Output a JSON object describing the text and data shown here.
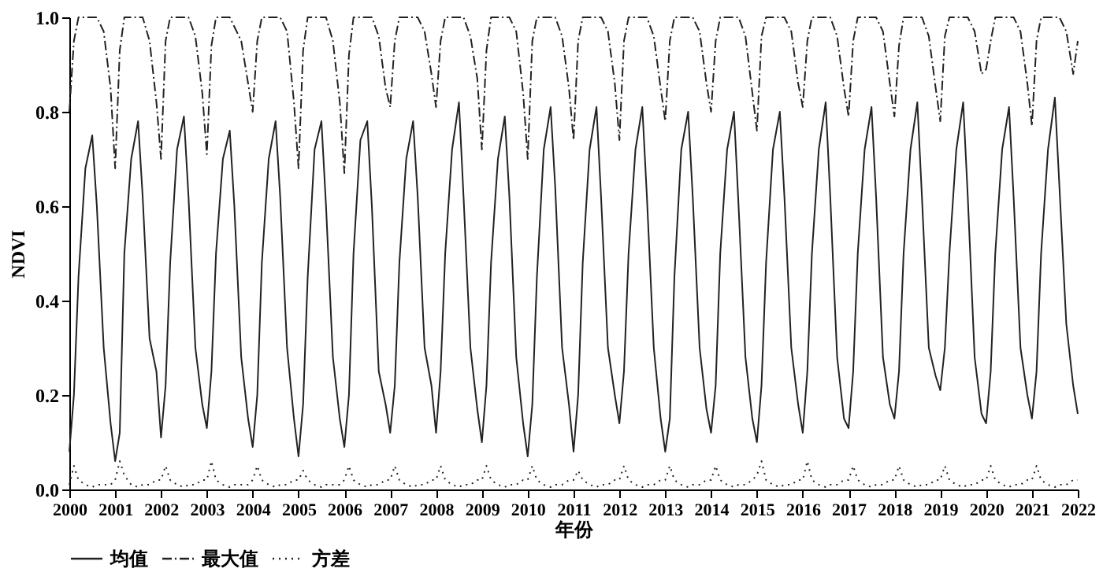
{
  "chart_data": {
    "type": "line",
    "xlabel": "年份",
    "ylabel": "NDVI",
    "xlim": [
      2000,
      2022
    ],
    "xticks": [
      2000,
      2001,
      2002,
      2003,
      2004,
      2005,
      2006,
      2007,
      2008,
      2009,
      2010,
      2011,
      2012,
      2013,
      2014,
      2015,
      2016,
      2017,
      2018,
      2019,
      2020,
      2021,
      2022
    ],
    "ylim": [
      0,
      1
    ],
    "yticks": [
      {
        "value": 0,
        "label": "0.0"
      },
      0.2,
      0.4,
      0.6,
      0.8,
      {
        "value": 1,
        "label": "1.0"
      }
    ],
    "grid": false,
    "legend": "bottom",
    "marker": "none",
    "x": [
      2000,
      2000.1,
      2000.2,
      2000.35,
      2000.5,
      2000.6,
      2000.75,
      2000.9,
      2001,
      2001.1,
      2001.2,
      2001.35,
      2001.5,
      2001.6,
      2001.75,
      2001.9,
      2002,
      2002.1,
      2002.2,
      2002.35,
      2002.5,
      2002.6,
      2002.75,
      2002.9,
      2003,
      2003.1,
      2003.2,
      2003.35,
      2003.5,
      2003.6,
      2003.75,
      2003.9,
      2004,
      2004.1,
      2004.2,
      2004.35,
      2004.5,
      2004.6,
      2004.75,
      2004.9,
      2005,
      2005.1,
      2005.2,
      2005.35,
      2005.5,
      2005.6,
      2005.75,
      2005.9,
      2006,
      2006.1,
      2006.2,
      2006.35,
      2006.5,
      2006.6,
      2006.75,
      2006.9,
      2007,
      2007.1,
      2007.2,
      2007.35,
      2007.5,
      2007.6,
      2007.75,
      2007.9,
      2008,
      2008.1,
      2008.2,
      2008.35,
      2008.5,
      2008.6,
      2008.75,
      2008.9,
      2009,
      2009.1,
      2009.2,
      2009.35,
      2009.5,
      2009.6,
      2009.75,
      2009.9,
      2010,
      2010.1,
      2010.2,
      2010.35,
      2010.5,
      2010.6,
      2010.75,
      2010.9,
      2011,
      2011.1,
      2011.2,
      2011.35,
      2011.5,
      2011.6,
      2011.75,
      2011.9,
      2012,
      2012.1,
      2012.2,
      2012.35,
      2012.5,
      2012.6,
      2012.75,
      2012.9,
      2013,
      2013.1,
      2013.2,
      2013.35,
      2013.5,
      2013.6,
      2013.75,
      2013.9,
      2014,
      2014.1,
      2014.2,
      2014.35,
      2014.5,
      2014.6,
      2014.75,
      2014.9,
      2015,
      2015.1,
      2015.2,
      2015.35,
      2015.5,
      2015.6,
      2015.75,
      2015.9,
      2016,
      2016.1,
      2016.2,
      2016.35,
      2016.5,
      2016.6,
      2016.75,
      2016.9,
      2017,
      2017.1,
      2017.2,
      2017.35,
      2017.5,
      2017.6,
      2017.75,
      2017.9,
      2018,
      2018.1,
      2018.2,
      2018.35,
      2018.5,
      2018.6,
      2018.75,
      2018.9,
      2019,
      2019.1,
      2019.2,
      2019.35,
      2019.5,
      2019.6,
      2019.75,
      2019.9,
      2020,
      2020.1,
      2020.2,
      2020.35,
      2020.5,
      2020.6,
      2020.75,
      2020.9,
      2021,
      2021.1,
      2021.2,
      2021.35,
      2021.5,
      2021.6,
      2021.75,
      2021.9,
      2022
    ],
    "series": [
      {
        "name": "均值",
        "color": "#222222",
        "line_style": "solid",
        "values": [
          0.08,
          0.2,
          0.45,
          0.68,
          0.75,
          0.6,
          0.3,
          0.14,
          0.06,
          0.12,
          0.5,
          0.7,
          0.78,
          0.62,
          0.32,
          0.25,
          0.11,
          0.22,
          0.48,
          0.72,
          0.79,
          0.62,
          0.3,
          0.18,
          0.13,
          0.25,
          0.5,
          0.7,
          0.76,
          0.6,
          0.28,
          0.15,
          0.09,
          0.2,
          0.48,
          0.7,
          0.78,
          0.62,
          0.3,
          0.15,
          0.07,
          0.18,
          0.45,
          0.72,
          0.78,
          0.6,
          0.28,
          0.15,
          0.09,
          0.2,
          0.5,
          0.74,
          0.78,
          0.6,
          0.25,
          0.18,
          0.12,
          0.22,
          0.48,
          0.7,
          0.78,
          0.62,
          0.3,
          0.22,
          0.12,
          0.25,
          0.5,
          0.72,
          0.82,
          0.62,
          0.3,
          0.17,
          0.1,
          0.22,
          0.48,
          0.7,
          0.79,
          0.62,
          0.28,
          0.14,
          0.07,
          0.18,
          0.45,
          0.72,
          0.81,
          0.64,
          0.3,
          0.18,
          0.08,
          0.2,
          0.48,
          0.72,
          0.81,
          0.62,
          0.3,
          0.2,
          0.14,
          0.25,
          0.5,
          0.72,
          0.81,
          0.62,
          0.3,
          0.15,
          0.08,
          0.15,
          0.45,
          0.72,
          0.8,
          0.62,
          0.3,
          0.17,
          0.12,
          0.22,
          0.5,
          0.72,
          0.8,
          0.6,
          0.28,
          0.15,
          0.1,
          0.22,
          0.48,
          0.72,
          0.8,
          0.62,
          0.3,
          0.18,
          0.12,
          0.25,
          0.5,
          0.72,
          0.82,
          0.62,
          0.28,
          0.15,
          0.13,
          0.25,
          0.5,
          0.72,
          0.81,
          0.62,
          0.28,
          0.18,
          0.15,
          0.25,
          0.5,
          0.72,
          0.82,
          0.62,
          0.3,
          0.24,
          0.21,
          0.3,
          0.5,
          0.72,
          0.82,
          0.62,
          0.28,
          0.16,
          0.14,
          0.25,
          0.5,
          0.72,
          0.81,
          0.62,
          0.3,
          0.2,
          0.15,
          0.25,
          0.5,
          0.72,
          0.83,
          0.64,
          0.35,
          0.22,
          0.16
        ]
      },
      {
        "name": "最大值",
        "color": "#222222",
        "line_style": "dashdot",
        "values": [
          0.8,
          0.95,
          1.0,
          1.0,
          1.0,
          1.0,
          0.97,
          0.85,
          0.68,
          0.93,
          1.0,
          1.0,
          1.0,
          1.0,
          0.95,
          0.82,
          0.7,
          0.95,
          1.0,
          1.0,
          1.0,
          1.0,
          0.96,
          0.84,
          0.71,
          0.94,
          1.0,
          1.0,
          1.0,
          0.98,
          0.95,
          0.86,
          0.8,
          0.95,
          1.0,
          1.0,
          1.0,
          1.0,
          0.97,
          0.82,
          0.68,
          0.93,
          1.0,
          1.0,
          1.0,
          1.0,
          0.95,
          0.82,
          0.67,
          0.92,
          1.0,
          1.0,
          1.0,
          1.0,
          0.96,
          0.85,
          0.81,
          0.95,
          1.0,
          1.0,
          1.0,
          1.0,
          0.97,
          0.88,
          0.81,
          0.95,
          1.0,
          1.0,
          1.0,
          1.0,
          0.96,
          0.87,
          0.72,
          0.93,
          1.0,
          1.0,
          1.0,
          1.0,
          0.97,
          0.84,
          0.7,
          0.95,
          1.0,
          1.0,
          1.0,
          1.0,
          0.96,
          0.85,
          0.74,
          0.95,
          1.0,
          1.0,
          1.0,
          1.0,
          0.97,
          0.86,
          0.74,
          0.95,
          1.0,
          1.0,
          1.0,
          1.0,
          0.96,
          0.85,
          0.78,
          0.95,
          1.0,
          1.0,
          1.0,
          1.0,
          0.97,
          0.86,
          0.8,
          0.95,
          1.0,
          1.0,
          1.0,
          1.0,
          0.96,
          0.84,
          0.76,
          0.96,
          1.0,
          1.0,
          1.0,
          1.0,
          0.97,
          0.86,
          0.81,
          0.95,
          1.0,
          1.0,
          1.0,
          1.0,
          0.96,
          0.85,
          0.79,
          0.95,
          1.0,
          1.0,
          1.0,
          1.0,
          0.97,
          0.86,
          0.79,
          0.94,
          1.0,
          1.0,
          1.0,
          1.0,
          0.96,
          0.85,
          0.78,
          0.96,
          1.0,
          1.0,
          1.0,
          1.0,
          0.97,
          0.88,
          0.89,
          0.95,
          1.0,
          1.0,
          1.0,
          1.0,
          0.97,
          0.86,
          0.77,
          0.95,
          1.0,
          1.0,
          1.0,
          1.0,
          0.97,
          0.88,
          0.95
        ]
      },
      {
        "name": "方差",
        "color": "#222222",
        "line_style": "dotted",
        "values": [
          0.01,
          0.05,
          0.02,
          0.01,
          0.005,
          0.01,
          0.01,
          0.01,
          0.02,
          0.06,
          0.03,
          0.01,
          0.005,
          0.01,
          0.01,
          0.02,
          0.02,
          0.05,
          0.02,
          0.01,
          0.005,
          0.01,
          0.01,
          0.02,
          0.02,
          0.06,
          0.02,
          0.01,
          0.005,
          0.01,
          0.01,
          0.01,
          0.02,
          0.05,
          0.02,
          0.01,
          0.005,
          0.01,
          0.01,
          0.02,
          0.02,
          0.04,
          0.02,
          0.01,
          0.005,
          0.01,
          0.01,
          0.01,
          0.02,
          0.05,
          0.02,
          0.01,
          0.005,
          0.01,
          0.01,
          0.02,
          0.02,
          0.05,
          0.02,
          0.01,
          0.005,
          0.01,
          0.01,
          0.02,
          0.02,
          0.05,
          0.02,
          0.01,
          0.005,
          0.01,
          0.01,
          0.02,
          0.02,
          0.05,
          0.02,
          0.01,
          0.005,
          0.01,
          0.01,
          0.02,
          0.02,
          0.05,
          0.02,
          0.01,
          0.005,
          0.01,
          0.01,
          0.02,
          0.02,
          0.04,
          0.02,
          0.01,
          0.005,
          0.01,
          0.01,
          0.02,
          0.02,
          0.05,
          0.02,
          0.01,
          0.005,
          0.01,
          0.01,
          0.02,
          0.02,
          0.05,
          0.02,
          0.01,
          0.005,
          0.01,
          0.01,
          0.02,
          0.02,
          0.05,
          0.02,
          0.01,
          0.005,
          0.01,
          0.01,
          0.02,
          0.03,
          0.06,
          0.02,
          0.01,
          0.005,
          0.01,
          0.01,
          0.02,
          0.02,
          0.06,
          0.02,
          0.01,
          0.005,
          0.01,
          0.01,
          0.02,
          0.02,
          0.05,
          0.02,
          0.01,
          0.005,
          0.01,
          0.01,
          0.02,
          0.02,
          0.05,
          0.02,
          0.01,
          0.005,
          0.01,
          0.01,
          0.02,
          0.02,
          0.05,
          0.02,
          0.01,
          0.005,
          0.01,
          0.01,
          0.02,
          0.02,
          0.05,
          0.02,
          0.01,
          0.005,
          0.01,
          0.01,
          0.02,
          0.02,
          0.05,
          0.02,
          0.01,
          0.005,
          0.01,
          0.01,
          0.02,
          0.02
        ]
      }
    ]
  }
}
